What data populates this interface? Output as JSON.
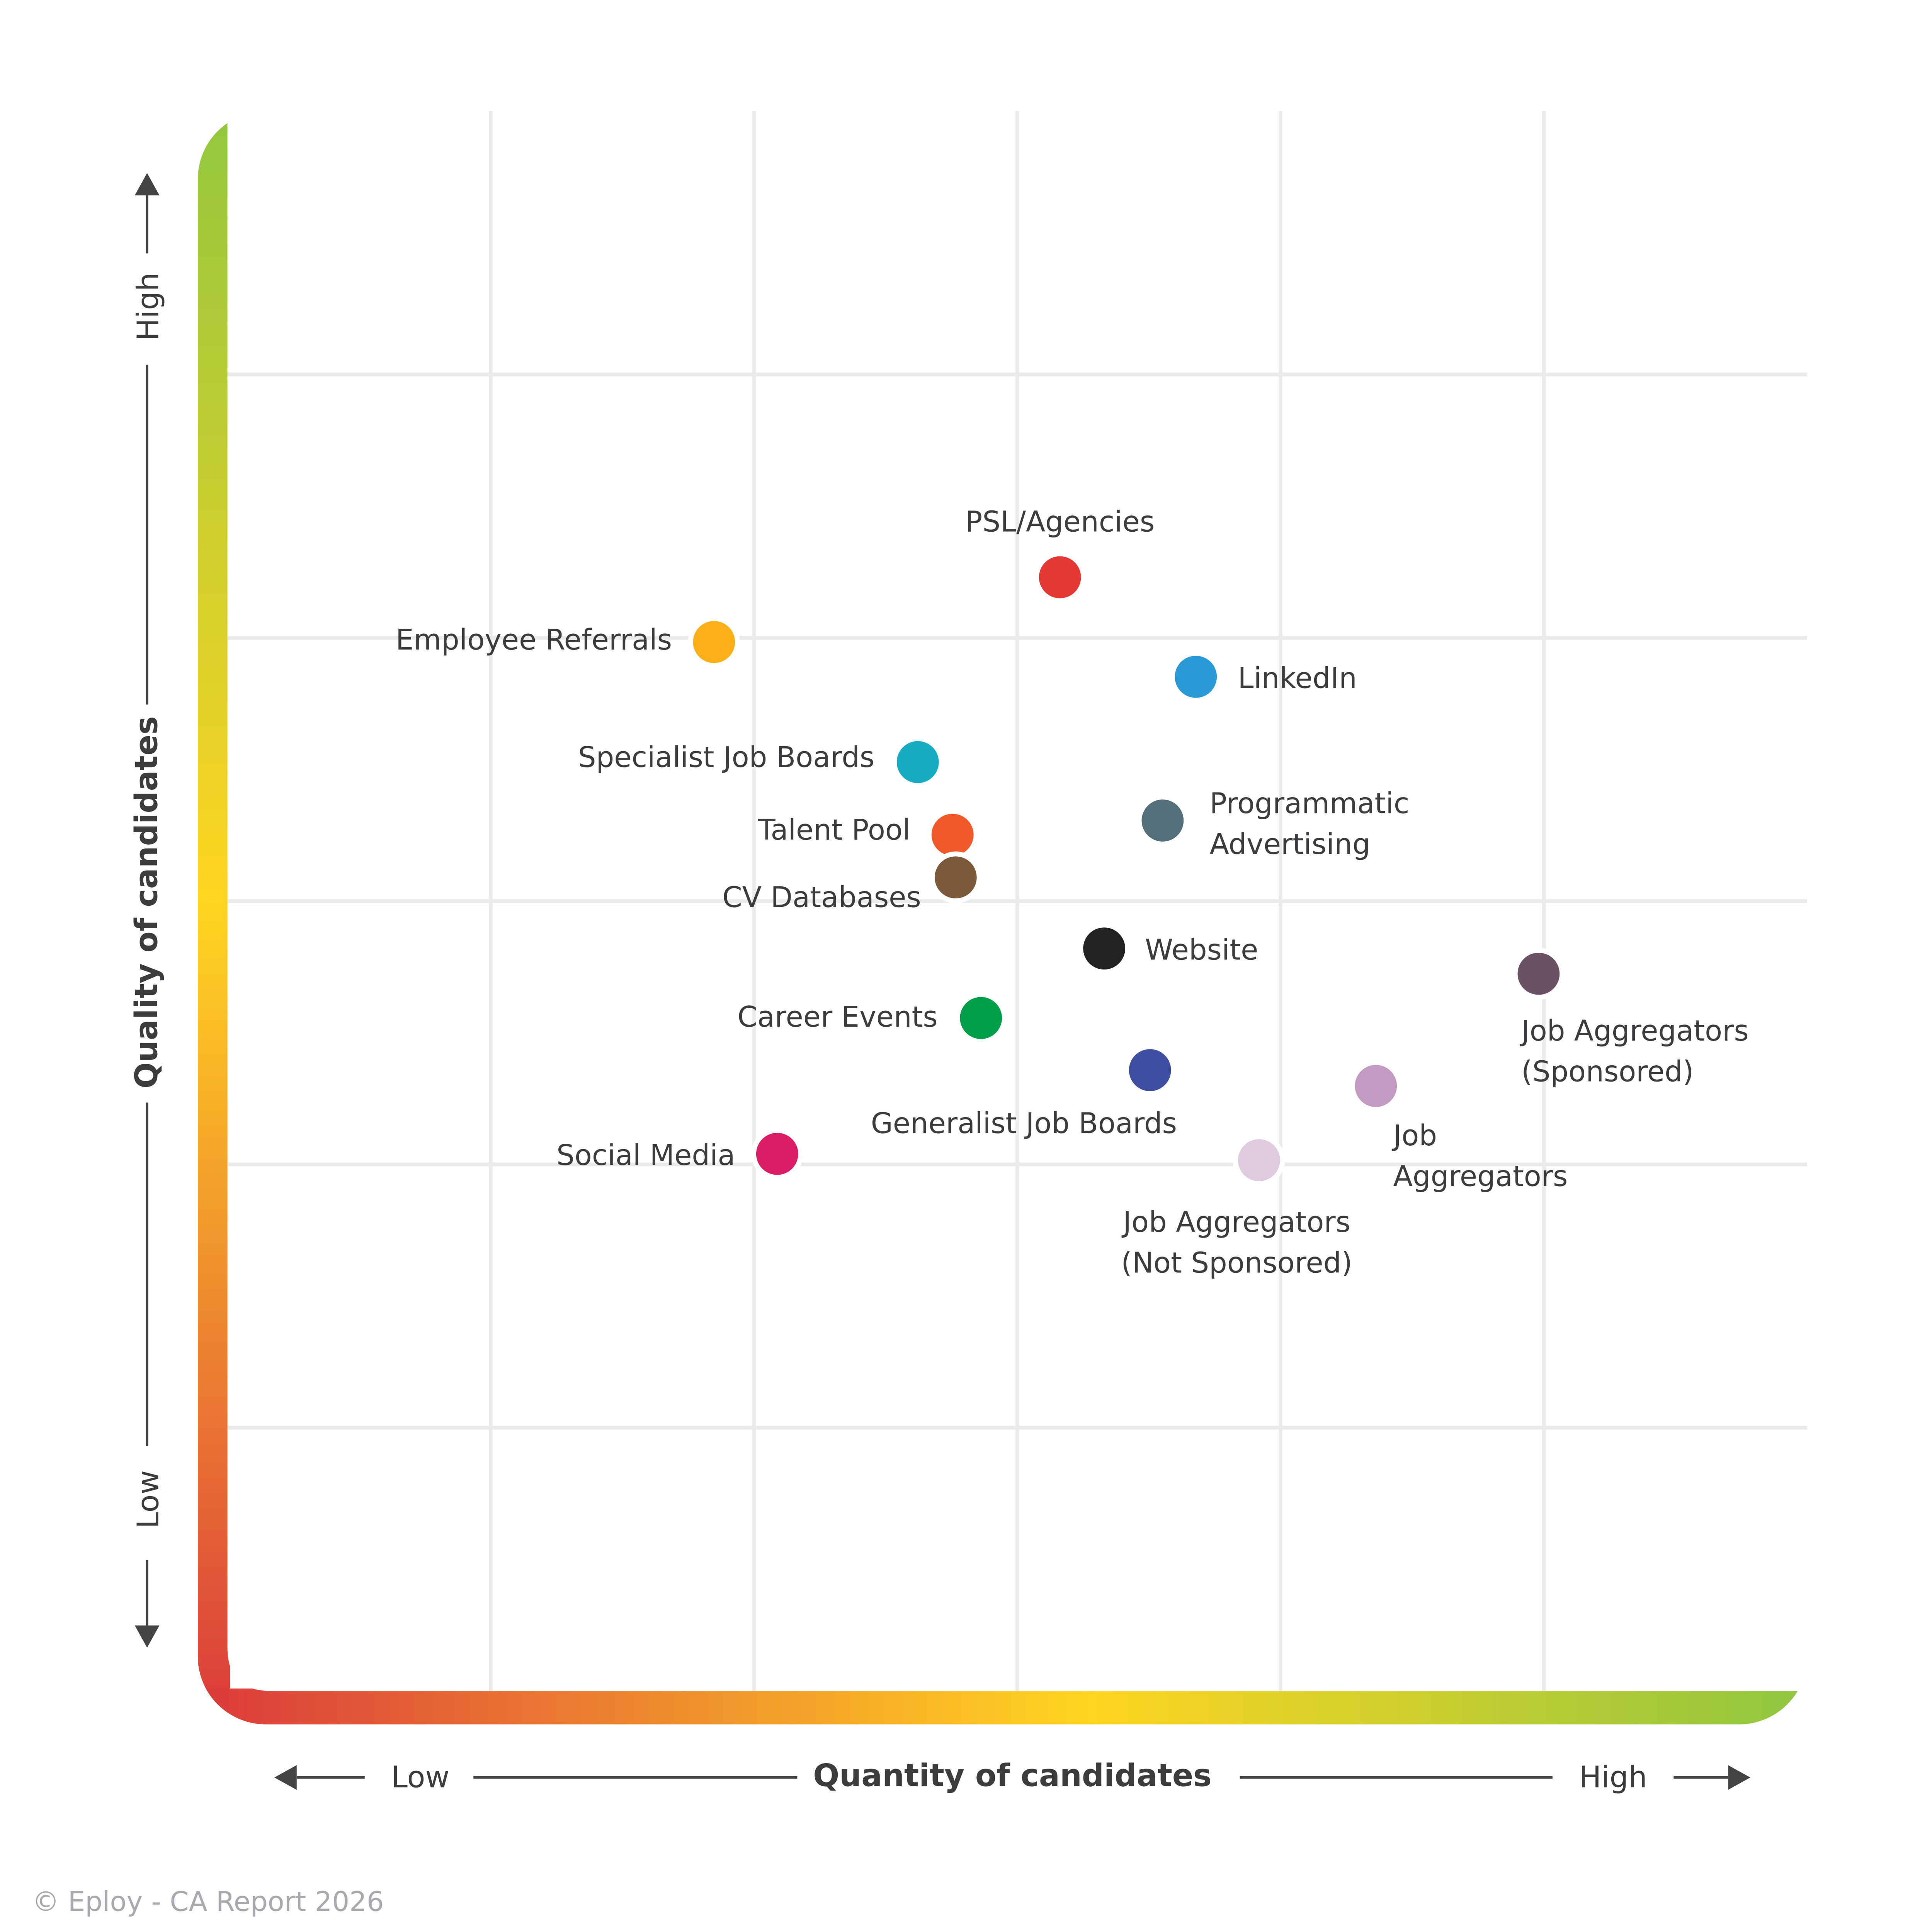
{
  "chart_data": {
    "type": "scatter",
    "title": "",
    "xlabel": "Quantity of candidates",
    "ylabel": "Quality of candidates",
    "x_low_label": "Low",
    "x_high_label": "High",
    "y_low_label": "Low",
    "y_high_label": "High",
    "xlim": [
      0,
      100
    ],
    "ylim": [
      0,
      100
    ],
    "grid": true,
    "frame_gradient": [
      "#db3a3c",
      "#ffd520",
      "#8dc63f"
    ],
    "points": [
      {
        "label": [
          "PSL/Agencies"
        ],
        "x": 52.7,
        "y": 70.5,
        "color": "#e53935"
      },
      {
        "label": [
          "Employee Referrals"
        ],
        "x": 30.8,
        "y": 66.4,
        "color": "#fbb017"
      },
      {
        "label": [
          "LinkedIn"
        ],
        "x": 61.3,
        "y": 64.2,
        "color": "#2a9ad6"
      },
      {
        "label": [
          "Specialist Job Boards"
        ],
        "x": 43.7,
        "y": 58.8,
        "color": "#15acc4"
      },
      {
        "label": [
          "Talent Pool"
        ],
        "x": 45.9,
        "y": 54.2,
        "color": "#f05a2b"
      },
      {
        "label": [
          "Programmatic",
          "Advertising"
        ],
        "x": 59.2,
        "y": 55.1,
        "color": "#546e7a"
      },
      {
        "label": [
          "CV Databases"
        ],
        "x": 46.1,
        "y": 51.5,
        "color": "#7b5a3c"
      },
      {
        "label": [
          "Website"
        ],
        "x": 55.5,
        "y": 47.0,
        "color": "#222222"
      },
      {
        "label": [
          "Job Aggregators",
          "(Sponsored)"
        ],
        "x": 83.0,
        "y": 45.4,
        "color": "#6b5164"
      },
      {
        "label": [
          "Career Events"
        ],
        "x": 47.7,
        "y": 42.6,
        "color": "#00a04a"
      },
      {
        "label": [
          "Generalist Job Boards"
        ],
        "x": 58.4,
        "y": 39.3,
        "color": "#3f4ea1"
      },
      {
        "label": [
          "Job",
          "Aggregators"
        ],
        "x": 72.7,
        "y": 38.3,
        "color": "#c39bc0"
      },
      {
        "label": [
          "Social Media"
        ],
        "x": 34.8,
        "y": 34.0,
        "color": "#dc1c64"
      },
      {
        "label": [
          "Job Aggregators",
          "(Not Sponsored)"
        ],
        "x": 65.3,
        "y": 33.6,
        "color": "#e0cce0"
      }
    ]
  },
  "footer": "© Eploy - CA Report 2026"
}
